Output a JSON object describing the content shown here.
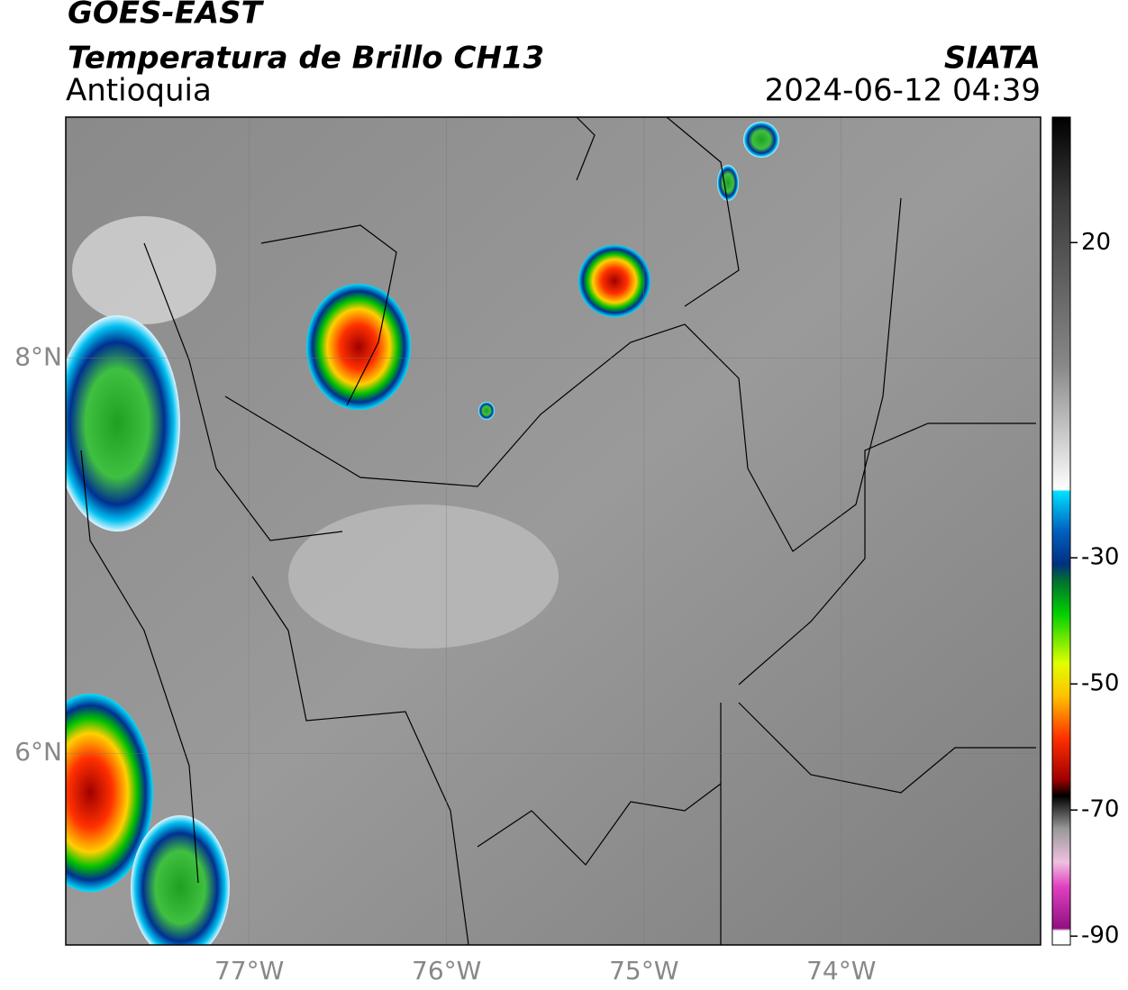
{
  "header": {
    "title": "GOES-EAST",
    "subtitle": "Temperatura de Brillo CH13",
    "region": "Antioquia",
    "source": "SIATA",
    "datetime": "2024-06-12 04:39"
  },
  "map": {
    "xlim": [
      -77.93,
      -72.99
    ],
    "ylim": [
      5.03,
      9.22
    ],
    "xticks": [
      {
        "value": -77,
        "label": "77°W"
      },
      {
        "value": -76,
        "label": "76°W"
      },
      {
        "value": -75,
        "label": "75°W"
      },
      {
        "value": -74,
        "label": "74°W"
      }
    ],
    "yticks": [
      {
        "value": 8,
        "label": "8°N"
      },
      {
        "value": 6,
        "label": "6°N"
      }
    ]
  },
  "colorbar": {
    "lim": [
      -91.4,
      39.9
    ],
    "ticks": [
      20,
      -30,
      -50,
      -70,
      -90
    ]
  }
}
